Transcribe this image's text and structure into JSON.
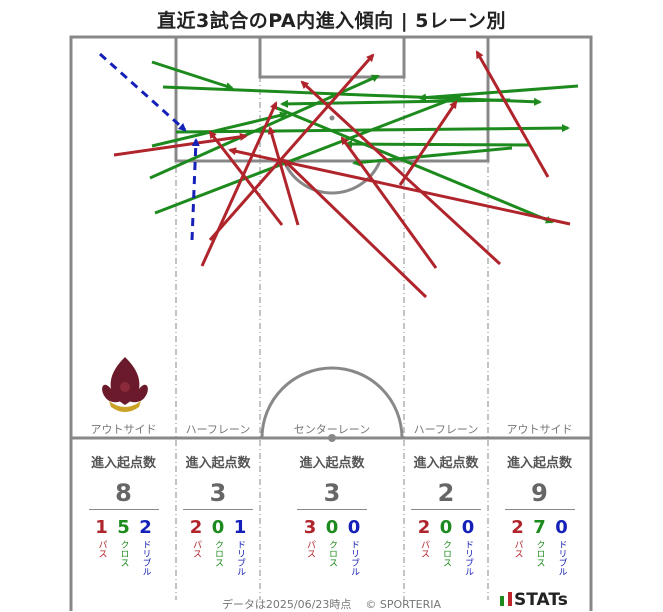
{
  "title": "直近3試合のPA内進入傾向 | 5レーン別",
  "colors": {
    "pass": "#b0242c",
    "cross": "#1d8a1d",
    "dribble": "#1420b8",
    "pitch_line": "#888888"
  },
  "logo": {
    "name": "fleur-de-lis-crest",
    "text": ""
  },
  "lanes": [
    {
      "label": "アウトサイド",
      "stats_header": "進入起点数",
      "total": "8",
      "pass": "1",
      "cross": "5",
      "dribble": "2"
    },
    {
      "label": "ハーフレーン",
      "stats_header": "進入起点数",
      "total": "3",
      "pass": "2",
      "cross": "0",
      "dribble": "1"
    },
    {
      "label": "センターレーン",
      "stats_header": "進入起点数",
      "total": "3",
      "pass": "3",
      "cross": "0",
      "dribble": "0"
    },
    {
      "label": "ハーフレーン",
      "stats_header": "進入起点数",
      "total": "2",
      "pass": "2",
      "cross": "0",
      "dribble": "0"
    },
    {
      "label": "アウトサイド",
      "stats_header": "進入起点数",
      "total": "9",
      "pass": "2",
      "cross": "7",
      "dribble": "0"
    }
  ],
  "legend_labels": {
    "pass": "パス",
    "cross": "クロス",
    "dribble": "ドリブル"
  },
  "footer": {
    "date_text": "データは2025/06/23時点",
    "copyright": "© SPORTERIA",
    "brand": "STATs"
  }
}
